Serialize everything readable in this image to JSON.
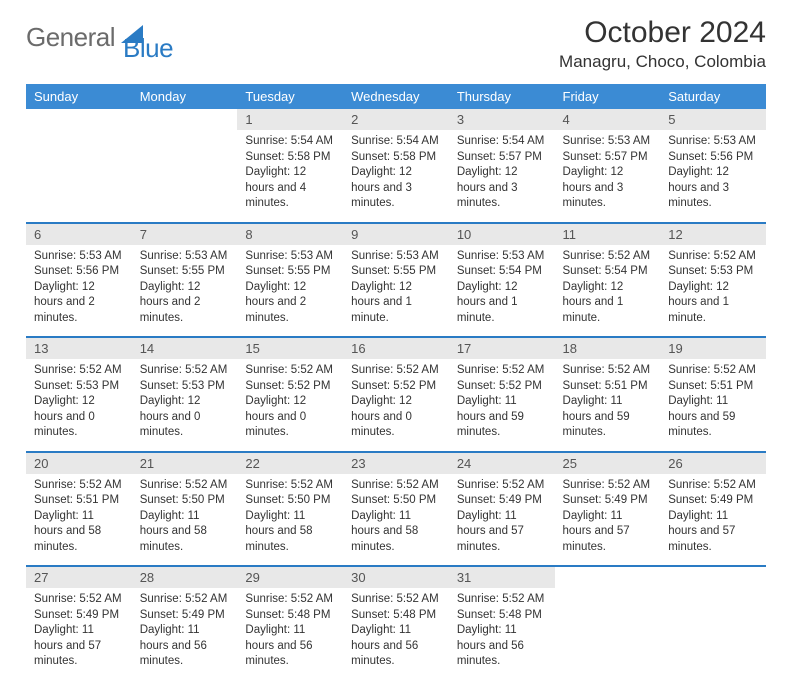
{
  "logo": {
    "gray": "General",
    "blue": "Blue"
  },
  "title": "October 2024",
  "location": "Managru, Choco, Colombia",
  "weekdays": [
    "Sunday",
    "Monday",
    "Tuesday",
    "Wednesday",
    "Thursday",
    "Friday",
    "Saturday"
  ],
  "weeks": [
    {
      "nums": [
        "",
        "",
        "1",
        "2",
        "3",
        "4",
        "5"
      ],
      "details": [
        "",
        "",
        "Sunrise: 5:54 AM\nSunset: 5:58 PM\nDaylight: 12 hours and 4 minutes.",
        "Sunrise: 5:54 AM\nSunset: 5:58 PM\nDaylight: 12 hours and 3 minutes.",
        "Sunrise: 5:54 AM\nSunset: 5:57 PM\nDaylight: 12 hours and 3 minutes.",
        "Sunrise: 5:53 AM\nSunset: 5:57 PM\nDaylight: 12 hours and 3 minutes.",
        "Sunrise: 5:53 AM\nSunset: 5:56 PM\nDaylight: 12 hours and 3 minutes."
      ]
    },
    {
      "nums": [
        "6",
        "7",
        "8",
        "9",
        "10",
        "11",
        "12"
      ],
      "details": [
        "Sunrise: 5:53 AM\nSunset: 5:56 PM\nDaylight: 12 hours and 2 minutes.",
        "Sunrise: 5:53 AM\nSunset: 5:55 PM\nDaylight: 12 hours and 2 minutes.",
        "Sunrise: 5:53 AM\nSunset: 5:55 PM\nDaylight: 12 hours and 2 minutes.",
        "Sunrise: 5:53 AM\nSunset: 5:55 PM\nDaylight: 12 hours and 1 minute.",
        "Sunrise: 5:53 AM\nSunset: 5:54 PM\nDaylight: 12 hours and 1 minute.",
        "Sunrise: 5:52 AM\nSunset: 5:54 PM\nDaylight: 12 hours and 1 minute.",
        "Sunrise: 5:52 AM\nSunset: 5:53 PM\nDaylight: 12 hours and 1 minute."
      ]
    },
    {
      "nums": [
        "13",
        "14",
        "15",
        "16",
        "17",
        "18",
        "19"
      ],
      "details": [
        "Sunrise: 5:52 AM\nSunset: 5:53 PM\nDaylight: 12 hours and 0 minutes.",
        "Sunrise: 5:52 AM\nSunset: 5:53 PM\nDaylight: 12 hours and 0 minutes.",
        "Sunrise: 5:52 AM\nSunset: 5:52 PM\nDaylight: 12 hours and 0 minutes.",
        "Sunrise: 5:52 AM\nSunset: 5:52 PM\nDaylight: 12 hours and 0 minutes.",
        "Sunrise: 5:52 AM\nSunset: 5:52 PM\nDaylight: 11 hours and 59 minutes.",
        "Sunrise: 5:52 AM\nSunset: 5:51 PM\nDaylight: 11 hours and 59 minutes.",
        "Sunrise: 5:52 AM\nSunset: 5:51 PM\nDaylight: 11 hours and 59 minutes."
      ]
    },
    {
      "nums": [
        "20",
        "21",
        "22",
        "23",
        "24",
        "25",
        "26"
      ],
      "details": [
        "Sunrise: 5:52 AM\nSunset: 5:51 PM\nDaylight: 11 hours and 58 minutes.",
        "Sunrise: 5:52 AM\nSunset: 5:50 PM\nDaylight: 11 hours and 58 minutes.",
        "Sunrise: 5:52 AM\nSunset: 5:50 PM\nDaylight: 11 hours and 58 minutes.",
        "Sunrise: 5:52 AM\nSunset: 5:50 PM\nDaylight: 11 hours and 58 minutes.",
        "Sunrise: 5:52 AM\nSunset: 5:49 PM\nDaylight: 11 hours and 57 minutes.",
        "Sunrise: 5:52 AM\nSunset: 5:49 PM\nDaylight: 11 hours and 57 minutes.",
        "Sunrise: 5:52 AM\nSunset: 5:49 PM\nDaylight: 11 hours and 57 minutes."
      ]
    },
    {
      "nums": [
        "27",
        "28",
        "29",
        "30",
        "31",
        "",
        ""
      ],
      "details": [
        "Sunrise: 5:52 AM\nSunset: 5:49 PM\nDaylight: 11 hours and 57 minutes.",
        "Sunrise: 5:52 AM\nSunset: 5:49 PM\nDaylight: 11 hours and 56 minutes.",
        "Sunrise: 5:52 AM\nSunset: 5:48 PM\nDaylight: 11 hours and 56 minutes.",
        "Sunrise: 5:52 AM\nSunset: 5:48 PM\nDaylight: 11 hours and 56 minutes.",
        "Sunrise: 5:52 AM\nSunset: 5:48 PM\nDaylight: 11 hours and 56 minutes.",
        "",
        ""
      ]
    }
  ],
  "colors": {
    "header_bg": "#3b8bd4",
    "border": "#2a7bc4",
    "daynum_bg": "#e8e8e8"
  }
}
